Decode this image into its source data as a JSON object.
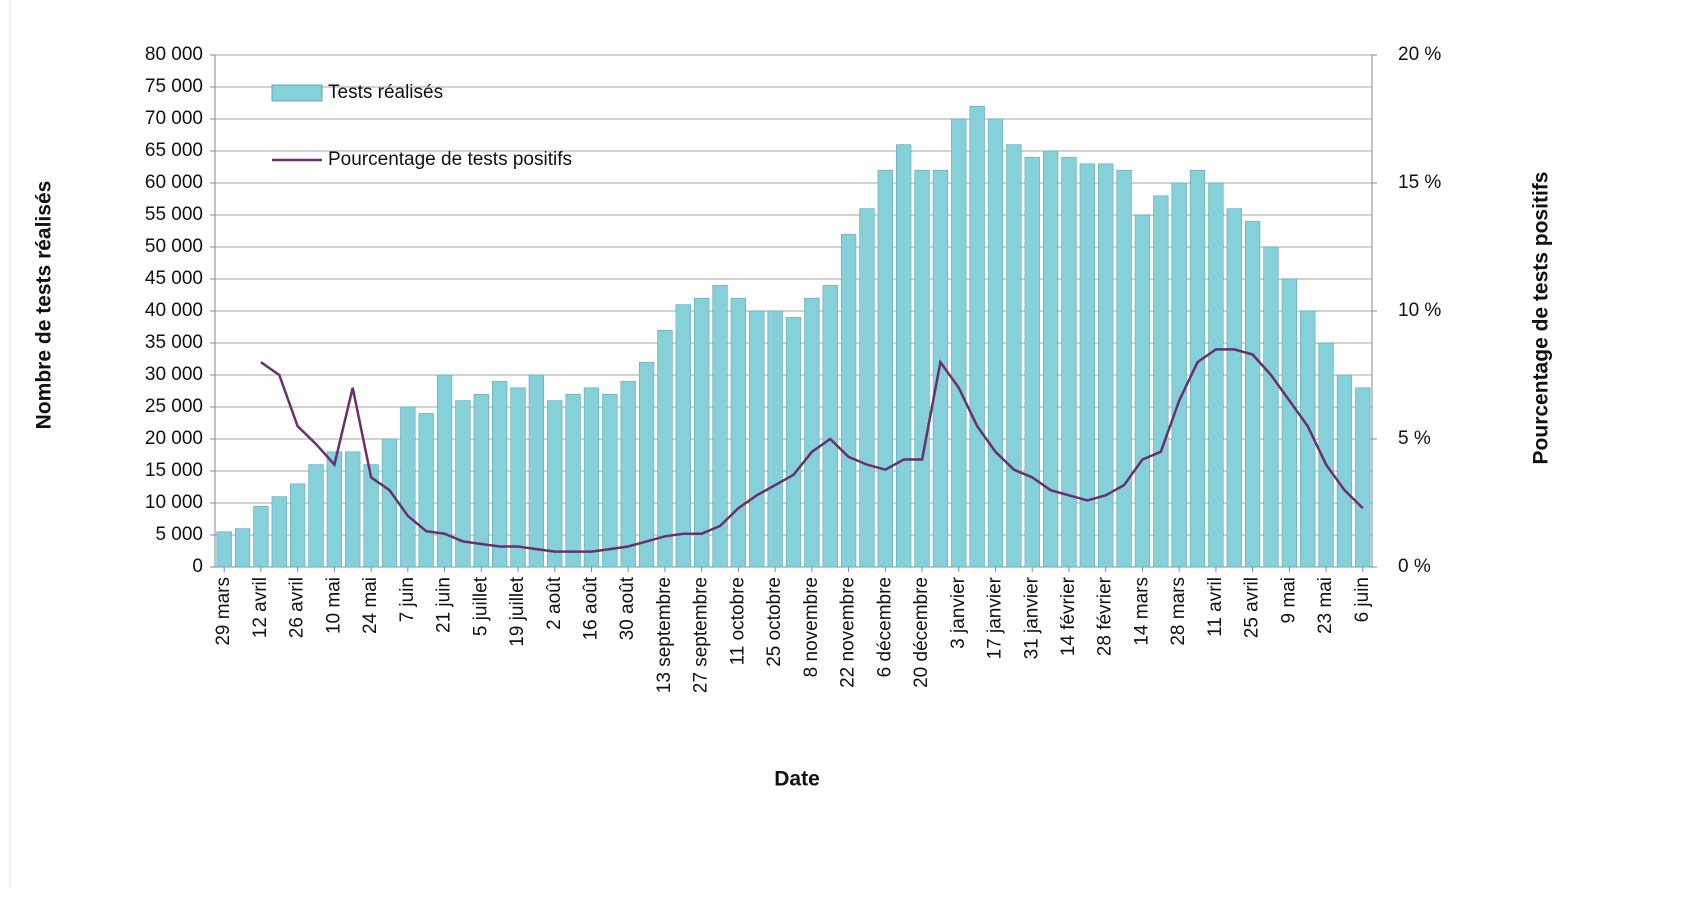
{
  "chart_data": {
    "type": "combo",
    "x_label": "Date",
    "y_label": "Nombre de tests réalisés",
    "y2_label": "Pourcentage de tests positifs",
    "categories": [
      "29 mars",
      null,
      "12 avril",
      null,
      "26 avril",
      null,
      "10 mai",
      null,
      "24 mai",
      null,
      "7 juin",
      null,
      "21 juin",
      null,
      "5 juillet",
      null,
      "19 juillet",
      null,
      "2 août",
      null,
      "16 août",
      null,
      "30 août",
      null,
      "13 septembre",
      null,
      "27 septembre",
      null,
      "11 octobre",
      null,
      "25 octobre",
      null,
      "8 novembre",
      null,
      "22 novembre",
      null,
      "6 décembre",
      null,
      "20 décembre",
      null,
      "3 janvier",
      null,
      "17 janvier",
      null,
      "31 janvier",
      null,
      "14 février",
      null,
      "28 février",
      null,
      "14 mars",
      null,
      "28 mars",
      null,
      "11 avril",
      null,
      "25 avril",
      null,
      "9 mai",
      null,
      "23 mai",
      null,
      "6 juin"
    ],
    "series": [
      {
        "name": "Tests réalisés",
        "type": "bar",
        "color": "#86d0da",
        "values": [
          5500,
          6000,
          9500,
          11000,
          13000,
          16000,
          18000,
          18000,
          16000,
          20000,
          25000,
          24000,
          30000,
          26000,
          27000,
          29000,
          28000,
          30000,
          26000,
          27000,
          28000,
          27000,
          29000,
          32000,
          37000,
          41000,
          42000,
          44000,
          42000,
          40000,
          40000,
          39000,
          42000,
          44000,
          52000,
          56000,
          62000,
          66000,
          62000,
          62000,
          70000,
          72000,
          70000,
          66000,
          64000,
          65000,
          64000,
          63000,
          63000,
          62000,
          55000,
          58000,
          60000,
          62000,
          60000,
          56000,
          54000,
          50000,
          45000,
          40000,
          35000,
          30000,
          28000
        ]
      },
      {
        "name": "Pourcentage de tests positifs",
        "type": "line",
        "axis": "y2",
        "color": "#6a2f6e",
        "values": [
          null,
          null,
          8.0,
          7.5,
          5.5,
          4.8,
          4.0,
          7.0,
          3.5,
          3.0,
          2.0,
          1.4,
          1.3,
          1.0,
          0.9,
          0.8,
          0.8,
          0.7,
          0.6,
          0.6,
          0.6,
          0.7,
          0.8,
          1.0,
          1.2,
          1.3,
          1.3,
          1.6,
          2.3,
          2.8,
          3.2,
          3.6,
          4.5,
          5.0,
          4.3,
          4.0,
          3.8,
          4.2,
          4.2,
          8.0,
          7.0,
          5.5,
          4.5,
          3.8,
          3.5,
          3.0,
          2.8,
          2.6,
          2.8,
          3.2,
          4.2,
          4.5,
          6.5,
          8.0,
          8.5,
          8.5,
          8.3,
          7.5,
          6.5,
          5.5,
          4.0,
          3.0,
          2.3
        ]
      }
    ],
    "ylim": [
      0,
      80000
    ],
    "yticks": [
      {
        "value": 0,
        "label": "0"
      },
      {
        "value": 5000,
        "label": "5 000"
      },
      {
        "value": 10000,
        "label": "10 000"
      },
      {
        "value": 15000,
        "label": "15 000"
      },
      {
        "value": 20000,
        "label": "20 000"
      },
      {
        "value": 25000,
        "label": "25 000"
      },
      {
        "value": 30000,
        "label": "30 000"
      },
      {
        "value": 35000,
        "label": "35 000"
      },
      {
        "value": 40000,
        "label": "40 000"
      },
      {
        "value": 45000,
        "label": "45 000"
      },
      {
        "value": 50000,
        "label": "50 000"
      },
      {
        "value": 55000,
        "label": "55 000"
      },
      {
        "value": 60000,
        "label": "60 000"
      },
      {
        "value": 65000,
        "label": "65 000"
      },
      {
        "value": 70000,
        "label": "70 000"
      },
      {
        "value": 75000,
        "label": "75 000"
      },
      {
        "value": 80000,
        "label": "80 000"
      }
    ],
    "y2lim": [
      0,
      20
    ],
    "y2ticks": [
      {
        "value": 0,
        "label": "0 %"
      },
      {
        "value": 5,
        "label": "5 %"
      },
      {
        "value": 10,
        "label": "10 %"
      },
      {
        "value": 15,
        "label": "15 %"
      },
      {
        "value": 20,
        "label": "20 %"
      }
    ],
    "grid": true
  }
}
